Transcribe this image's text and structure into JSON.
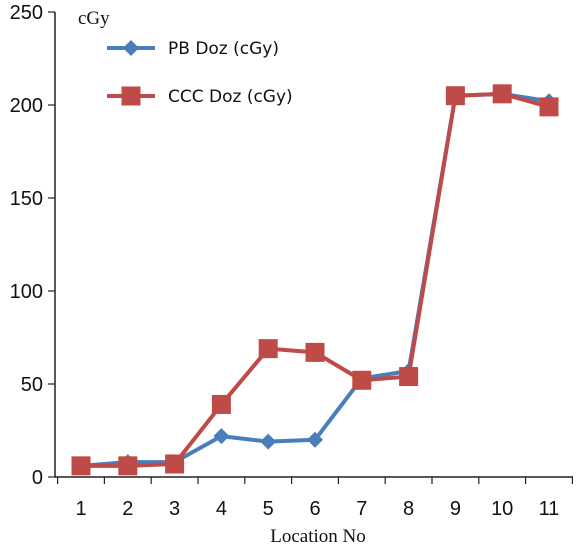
{
  "chart_data": {
    "type": "line",
    "x": [
      1,
      2,
      3,
      4,
      5,
      6,
      7,
      8,
      9,
      10,
      11
    ],
    "xlabel": "Location No",
    "ylabel": "cGy",
    "ylim": [
      0,
      250
    ],
    "yticks": [
      0,
      50,
      100,
      150,
      200,
      250
    ],
    "grid": false,
    "legend_position": "top-left",
    "series": [
      {
        "name": "PB Doz (cGy)",
        "color": "#4a7ebb",
        "marker": "diamond",
        "values": [
          6,
          8,
          8,
          22,
          19,
          20,
          53,
          57,
          205,
          206,
          202
        ]
      },
      {
        "name": "CCC Doz (cGy)",
        "color": "#be4b48",
        "marker": "square",
        "values": [
          6,
          6,
          7,
          39,
          69,
          67,
          52,
          54,
          205,
          206,
          199
        ]
      }
    ]
  }
}
